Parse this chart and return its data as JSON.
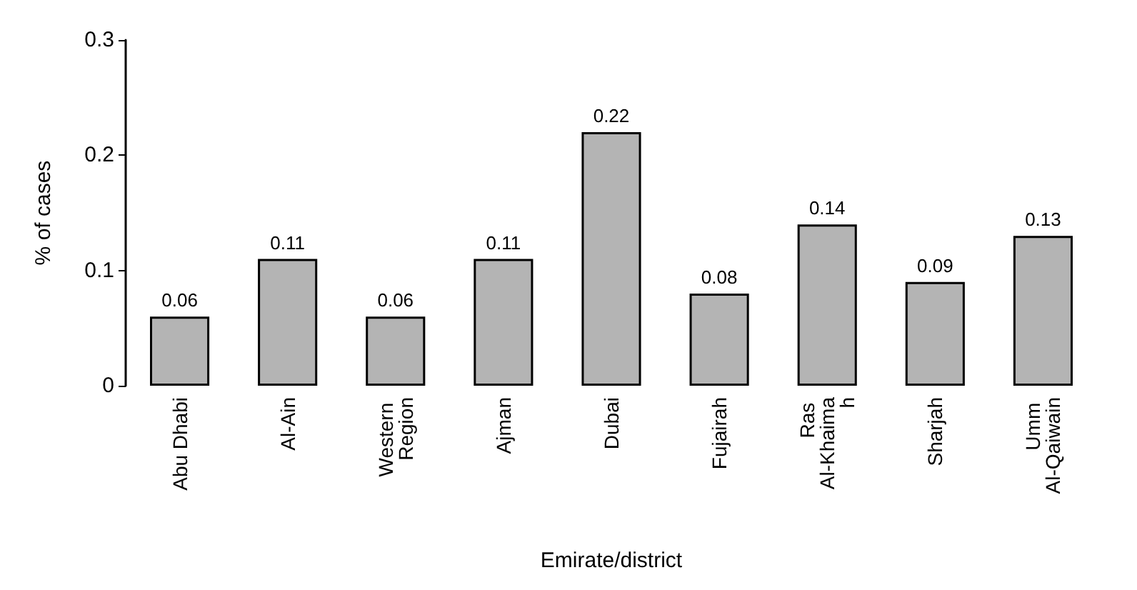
{
  "chart_data": {
    "type": "bar",
    "xlabel": "Emirate/district",
    "ylabel": "% of cases",
    "categories": [
      "Abu Dhabi",
      "Al-Ain",
      "Western Region",
      "Ajman",
      "Dubai",
      "Fujairah",
      "Ras Al-Khaimah",
      "Sharjah",
      "Umm Al-Qaiwain"
    ],
    "values": [
      0.06,
      0.11,
      0.06,
      0.11,
      0.22,
      0.08,
      0.14,
      0.09,
      0.13
    ],
    "color": "#b4b4b4",
    "ylim": [
      0,
      0.3
    ],
    "yticks": [
      0,
      0.1,
      0.2,
      0.3
    ],
    "data_labels": true,
    "grid": false
  }
}
